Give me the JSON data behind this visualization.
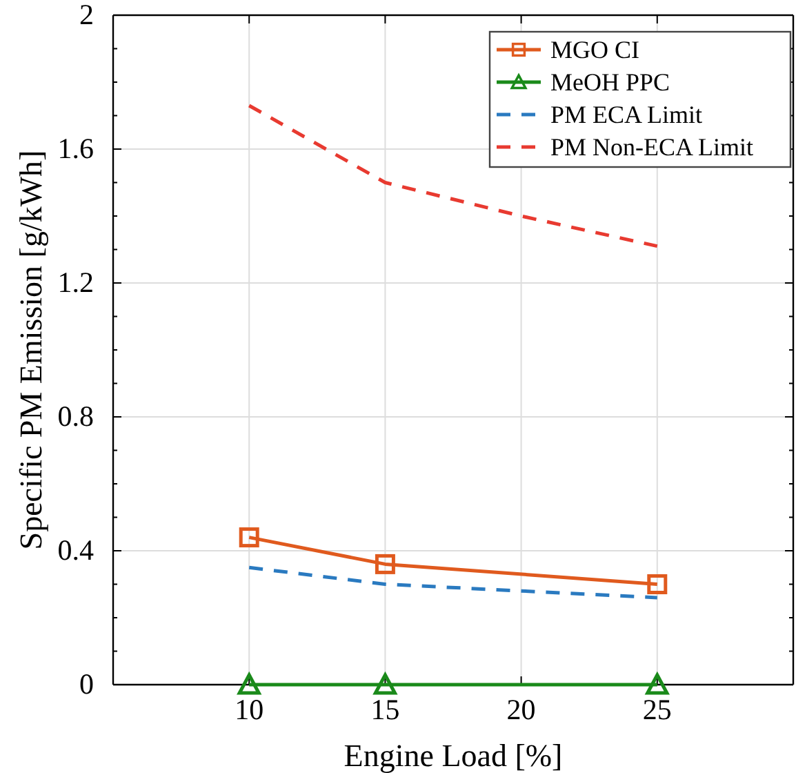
{
  "chart_data": {
    "type": "line",
    "xlabel": "Engine Load [%]",
    "ylabel": "Specific PM Emission [g/kWh]",
    "xlim": [
      5,
      30
    ],
    "xticks": [
      10,
      15,
      20,
      25
    ],
    "ylim": [
      0,
      2
    ],
    "yticks": [
      0,
      {
        "value": 0.1,
        "label": null
      },
      {
        "value": 0.2,
        "label": null
      },
      {
        "value": 0.3,
        "label": null
      },
      0.4,
      {
        "value": 0.5,
        "label": null
      },
      {
        "value": 0.6,
        "label": null
      },
      {
        "value": 0.7,
        "label": null
      },
      0.8,
      {
        "value": 0.9,
        "label": null
      },
      {
        "value": 1.0,
        "label": null
      },
      {
        "value": 1.1,
        "label": null
      },
      1.2,
      {
        "value": 1.3,
        "label": null
      },
      {
        "value": 1.4,
        "label": null
      },
      {
        "value": 1.5,
        "label": null
      },
      1.6,
      {
        "value": 1.7,
        "label": null
      },
      {
        "value": 1.8,
        "label": null
      },
      {
        "value": 1.9,
        "label": null
      },
      2
    ],
    "grid": true,
    "legend": "top right",
    "series": [
      {
        "name": "MGO CI",
        "color": "#e05a1e",
        "x": [
          10,
          15,
          25
        ],
        "values": [
          0.44,
          0.36,
          0.3
        ],
        "marker": "square",
        "line_style": "solid"
      },
      {
        "name": "MeOH PPC",
        "color": "#1a8a1a",
        "x": [
          10,
          15,
          25
        ],
        "values": [
          0,
          0,
          0
        ],
        "marker": "triangle",
        "line_style": "solid"
      },
      {
        "name": "PM ECA Limit",
        "color": "#2a7ac0",
        "x": [
          10,
          15,
          20,
          25
        ],
        "values": [
          0.35,
          0.3,
          0.28,
          0.26
        ],
        "marker": "none",
        "line_style": "dashed"
      },
      {
        "name": "PM Non-ECA Limit",
        "color": "#e83a30",
        "x": [
          10,
          15,
          20,
          25
        ],
        "values": [
          1.73,
          1.5,
          1.4,
          1.31
        ],
        "marker": "none",
        "line_style": "dashed"
      }
    ]
  }
}
